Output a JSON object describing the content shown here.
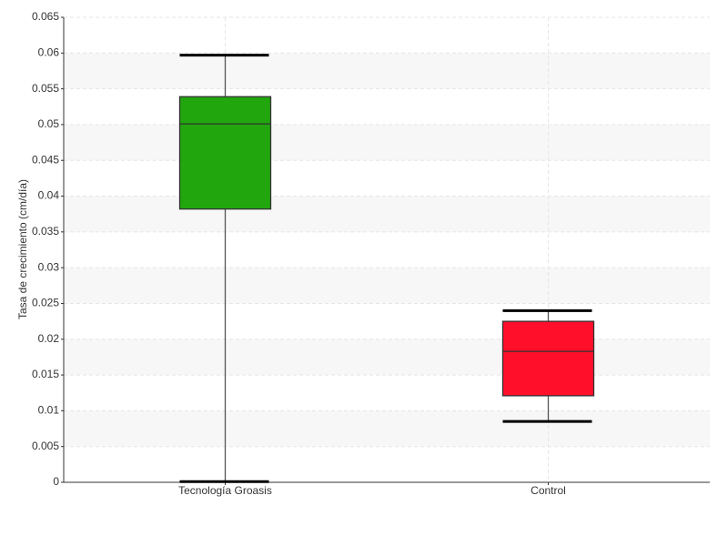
{
  "chart_data": {
    "type": "box",
    "y_label": "Tasa de crecimiento (cm/día)",
    "categories": [
      "Tecnología Groasis",
      "Control"
    ],
    "boxes": [
      {
        "min": 0.0001,
        "q1": 0.0382,
        "median": 0.0501,
        "q3": 0.0539,
        "max": 0.0597,
        "color": "#22a60e"
      },
      {
        "min": 0.0085,
        "q1": 0.0121,
        "median": 0.0183,
        "q3": 0.0225,
        "max": 0.024,
        "color": "#ff0f2a"
      }
    ],
    "ylim": [
      0,
      0.065
    ],
    "yticks": [
      0,
      0.005,
      0.01,
      0.015,
      0.02,
      0.025,
      0.03,
      0.035,
      0.04,
      0.045,
      0.05,
      0.055,
      0.06,
      0.065
    ],
    "grid": true
  }
}
